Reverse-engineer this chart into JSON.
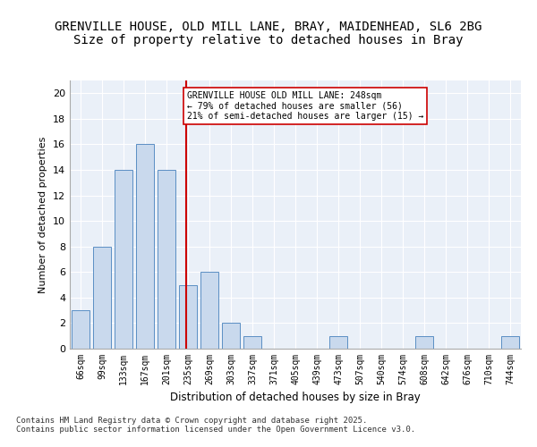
{
  "title1": "GRENVILLE HOUSE, OLD MILL LANE, BRAY, MAIDENHEAD, SL6 2BG",
  "title2": "Size of property relative to detached houses in Bray",
  "xlabel": "Distribution of detached houses by size in Bray",
  "ylabel": "Number of detached properties",
  "categories": [
    "66sqm",
    "99sqm",
    "133sqm",
    "167sqm",
    "201sqm",
    "235sqm",
    "269sqm",
    "303sqm",
    "337sqm",
    "371sqm",
    "405sqm",
    "439sqm",
    "473sqm",
    "507sqm",
    "540sqm",
    "574sqm",
    "608sqm",
    "642sqm",
    "676sqm",
    "710sqm",
    "744sqm"
  ],
  "values": [
    3,
    8,
    14,
    16,
    14,
    5,
    6,
    2,
    1,
    0,
    0,
    0,
    1,
    0,
    0,
    0,
    1,
    0,
    0,
    0,
    1
  ],
  "bar_color": "#c9d9ed",
  "bar_edge_color": "#5b8fc4",
  "vline_x": 4.92,
  "vline_color": "#cc0000",
  "annotation_text": "GRENVILLE HOUSE OLD MILL LANE: 248sqm\n← 79% of detached houses are smaller (56)\n21% of semi-detached houses are larger (15) →",
  "annotation_box_color": "#ffffff",
  "annotation_box_edge": "#cc0000",
  "ylim": [
    0,
    21
  ],
  "yticks": [
    0,
    2,
    4,
    6,
    8,
    10,
    12,
    14,
    16,
    18,
    20
  ],
  "footnote": "Contains HM Land Registry data © Crown copyright and database right 2025.\nContains public sector information licensed under the Open Government Licence v3.0.",
  "bg_color": "#eaf0f8",
  "fig_bg_color": "#ffffff",
  "title_fontsize": 10,
  "subtitle_fontsize": 10
}
